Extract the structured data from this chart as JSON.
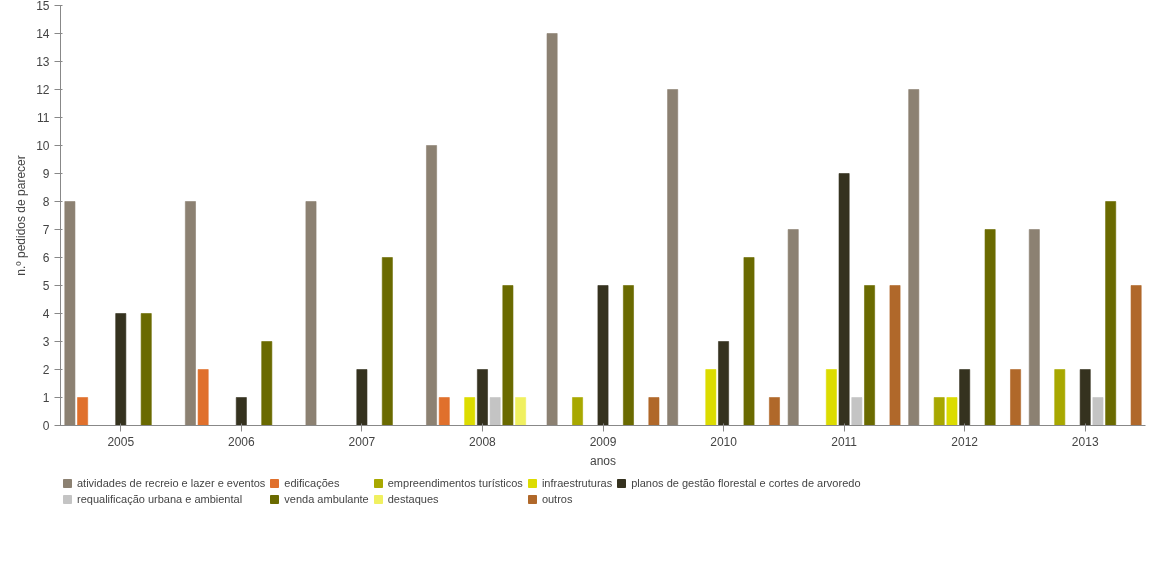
{
  "chart_data": {
    "type": "bar",
    "xlabel": "anos",
    "ylabel": "n.º pedidos de parecer",
    "categories": [
      "2005",
      "2006",
      "2007",
      "2008",
      "2009",
      "2010",
      "2011",
      "2012",
      "2013"
    ],
    "ylim": [
      0,
      15
    ],
    "yticks": [
      0,
      1,
      2,
      3,
      4,
      5,
      6,
      7,
      8,
      9,
      10,
      11,
      12,
      13,
      14,
      15
    ],
    "grid": false,
    "legend": "bottom",
    "series": [
      {
        "name": "atividades de recreio e lazer e eventos",
        "color": "#8c8172",
        "values": [
          8,
          8,
          8,
          10,
          14,
          12,
          7,
          12,
          7
        ]
      },
      {
        "name": "edificações",
        "color": "#e0702c",
        "values": [
          1,
          2,
          0,
          1,
          0,
          0,
          0,
          0,
          0
        ]
      },
      {
        "name": "empreendimentos turísticos",
        "color": "#a8a800",
        "values": [
          0,
          0,
          0,
          0,
          1,
          0,
          0,
          1,
          2
        ]
      },
      {
        "name": "infraestruturas",
        "color": "#dcdc00",
        "values": [
          0,
          0,
          0,
          1,
          0,
          2,
          2,
          1,
          0
        ]
      },
      {
        "name": "planos de gestão florestal e cortes de arvoredo",
        "color": "#35321f",
        "values": [
          4,
          1,
          2,
          2,
          5,
          3,
          9,
          2,
          2
        ]
      },
      {
        "name": "requalificação urbana e ambiental",
        "color": "#c4c4c4",
        "values": [
          0,
          0,
          0,
          1,
          0,
          0,
          1,
          0,
          1
        ]
      },
      {
        "name": "venda ambulante",
        "color": "#6a6a00",
        "values": [
          4,
          3,
          6,
          5,
          5,
          6,
          5,
          7,
          8
        ]
      },
      {
        "name": "destaques",
        "color": "#f0f060",
        "values": [
          0,
          0,
          0,
          1,
          0,
          0,
          0,
          0,
          0
        ]
      },
      {
        "name": "outros",
        "color": "#b0682a",
        "values": [
          0,
          0,
          0,
          0,
          1,
          1,
          5,
          2,
          5
        ]
      }
    ]
  }
}
